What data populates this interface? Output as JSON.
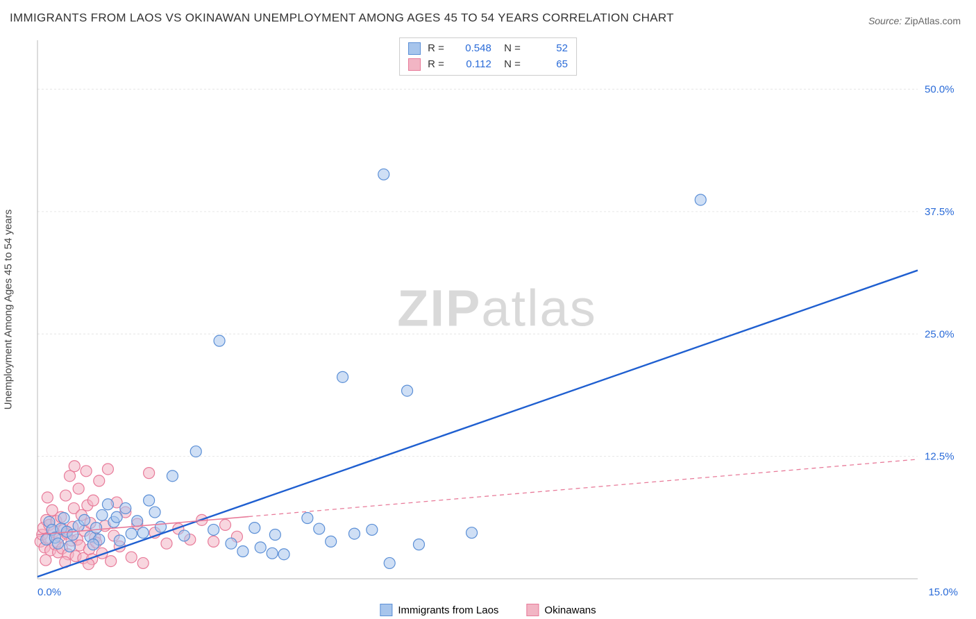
{
  "title": "IMMIGRANTS FROM LAOS VS OKINAWAN UNEMPLOYMENT AMONG AGES 45 TO 54 YEARS CORRELATION CHART",
  "source_label": "Source:",
  "source_value": "ZipAtlas.com",
  "watermark": "ZIPatlas",
  "chart": {
    "type": "scatter",
    "ylabel": "Unemployment Among Ages 45 to 54 years",
    "xlim": [
      0,
      15
    ],
    "ylim": [
      0,
      55
    ],
    "xticks": [
      0.0,
      15.0
    ],
    "xtick_labels": [
      "0.0%",
      "15.0%"
    ],
    "yticks": [
      12.5,
      25.0,
      37.5,
      50.0
    ],
    "ytick_labels": [
      "12.5%",
      "25.0%",
      "37.5%",
      "50.0%"
    ],
    "gridline_y": [
      12.5,
      25.0,
      37.5,
      50.0
    ],
    "background_color": "#ffffff",
    "grid_color": "#e6e6e6",
    "axis_color": "#b8b8b8",
    "tick_label_color": "#2a6bd8",
    "marker_radius": 8,
    "series": [
      {
        "name": "Immigrants from Laos",
        "color_fill": "#a7c5ec",
        "color_stroke": "#5b8fd6",
        "fill_opacity": 0.55,
        "R": "0.548",
        "N": "52",
        "trend": {
          "x1": 0,
          "y1": 0.2,
          "x2": 15,
          "y2": 31.5,
          "solid_until_x": 15,
          "dash": false,
          "color": "#1f5fd0",
          "width": 2.4
        },
        "points": [
          [
            0.15,
            4.0
          ],
          [
            0.2,
            5.8
          ],
          [
            0.25,
            5.0
          ],
          [
            0.3,
            4.2
          ],
          [
            0.35,
            3.6
          ],
          [
            0.4,
            5.1
          ],
          [
            0.45,
            6.2
          ],
          [
            0.5,
            4.8
          ],
          [
            0.55,
            3.3
          ],
          [
            0.6,
            4.5
          ],
          [
            0.7,
            5.4
          ],
          [
            0.8,
            6.0
          ],
          [
            0.9,
            4.3
          ],
          [
            1.0,
            5.2
          ],
          [
            1.05,
            4.0
          ],
          [
            1.1,
            6.5
          ],
          [
            1.2,
            7.6
          ],
          [
            1.3,
            5.8
          ],
          [
            1.4,
            3.9
          ],
          [
            1.5,
            7.2
          ],
          [
            1.6,
            4.6
          ],
          [
            1.7,
            5.9
          ],
          [
            1.8,
            4.7
          ],
          [
            1.9,
            8.0
          ],
          [
            2.1,
            5.3
          ],
          [
            2.3,
            10.5
          ],
          [
            2.5,
            4.4
          ],
          [
            2.7,
            13.0
          ],
          [
            3.0,
            5.0
          ],
          [
            3.1,
            24.3
          ],
          [
            3.3,
            3.6
          ],
          [
            3.5,
            2.8
          ],
          [
            3.7,
            5.2
          ],
          [
            3.8,
            3.2
          ],
          [
            4.0,
            2.6
          ],
          [
            4.05,
            4.5
          ],
          [
            4.2,
            2.5
          ],
          [
            4.6,
            6.2
          ],
          [
            4.8,
            5.1
          ],
          [
            5.0,
            3.8
          ],
          [
            5.2,
            20.6
          ],
          [
            5.4,
            4.6
          ],
          [
            5.7,
            5.0
          ],
          [
            5.9,
            41.3
          ],
          [
            6.0,
            1.6
          ],
          [
            6.3,
            19.2
          ],
          [
            6.5,
            3.5
          ],
          [
            7.4,
            4.7
          ],
          [
            11.3,
            38.7
          ],
          [
            2.0,
            6.8
          ],
          [
            0.95,
            3.5
          ],
          [
            1.35,
            6.3
          ]
        ]
      },
      {
        "name": "Okinawans",
        "color_fill": "#f2b5c4",
        "color_stroke": "#e87a99",
        "fill_opacity": 0.55,
        "R": "0.112",
        "N": "65",
        "trend": {
          "x1": 0,
          "y1": 4.5,
          "x2": 15,
          "y2": 12.2,
          "solid_until_x": 3.6,
          "dash": true,
          "color": "#e87a99",
          "width": 1.6
        },
        "points": [
          [
            0.05,
            3.8
          ],
          [
            0.08,
            4.5
          ],
          [
            0.1,
            5.2
          ],
          [
            0.12,
            3.2
          ],
          [
            0.15,
            6.0
          ],
          [
            0.18,
            4.1
          ],
          [
            0.2,
            5.5
          ],
          [
            0.22,
            2.9
          ],
          [
            0.25,
            7.0
          ],
          [
            0.28,
            4.8
          ],
          [
            0.3,
            3.5
          ],
          [
            0.32,
            5.9
          ],
          [
            0.35,
            2.7
          ],
          [
            0.38,
            4.3
          ],
          [
            0.4,
            6.3
          ],
          [
            0.42,
            3.1
          ],
          [
            0.45,
            5.0
          ],
          [
            0.48,
            8.5
          ],
          [
            0.5,
            4.6
          ],
          [
            0.52,
            2.5
          ],
          [
            0.55,
            10.5
          ],
          [
            0.58,
            3.9
          ],
          [
            0.6,
            5.3
          ],
          [
            0.62,
            7.2
          ],
          [
            0.65,
            2.3
          ],
          [
            0.68,
            4.0
          ],
          [
            0.7,
            9.2
          ],
          [
            0.72,
            3.4
          ],
          [
            0.75,
            6.5
          ],
          [
            0.78,
            2.1
          ],
          [
            0.8,
            4.9
          ],
          [
            0.83,
            11.0
          ],
          [
            0.85,
            7.5
          ],
          [
            0.88,
            3.0
          ],
          [
            0.9,
            5.7
          ],
          [
            0.93,
            2.0
          ],
          [
            0.95,
            8.0
          ],
          [
            0.98,
            4.2
          ],
          [
            1.0,
            3.7
          ],
          [
            1.05,
            10.0
          ],
          [
            1.1,
            2.6
          ],
          [
            1.15,
            5.4
          ],
          [
            1.2,
            11.2
          ],
          [
            1.25,
            1.8
          ],
          [
            1.3,
            4.4
          ],
          [
            1.4,
            3.3
          ],
          [
            1.5,
            6.8
          ],
          [
            1.6,
            2.2
          ],
          [
            1.7,
            5.6
          ],
          [
            1.8,
            1.6
          ],
          [
            1.9,
            10.8
          ],
          [
            2.0,
            4.7
          ],
          [
            2.2,
            3.6
          ],
          [
            2.4,
            5.1
          ],
          [
            2.6,
            4.0
          ],
          [
            2.8,
            6.0
          ],
          [
            3.0,
            3.8
          ],
          [
            3.2,
            5.5
          ],
          [
            3.4,
            4.3
          ],
          [
            0.14,
            1.9
          ],
          [
            0.17,
            8.3
          ],
          [
            0.47,
            1.7
          ],
          [
            0.63,
            11.5
          ],
          [
            0.87,
            1.5
          ],
          [
            1.35,
            7.8
          ]
        ]
      }
    ],
    "legend_series": [
      {
        "label": "Immigrants from Laos",
        "fill": "#a7c5ec",
        "stroke": "#5b8fd6"
      },
      {
        "label": "Okinawans",
        "fill": "#f2b5c4",
        "stroke": "#e87a99"
      }
    ]
  }
}
